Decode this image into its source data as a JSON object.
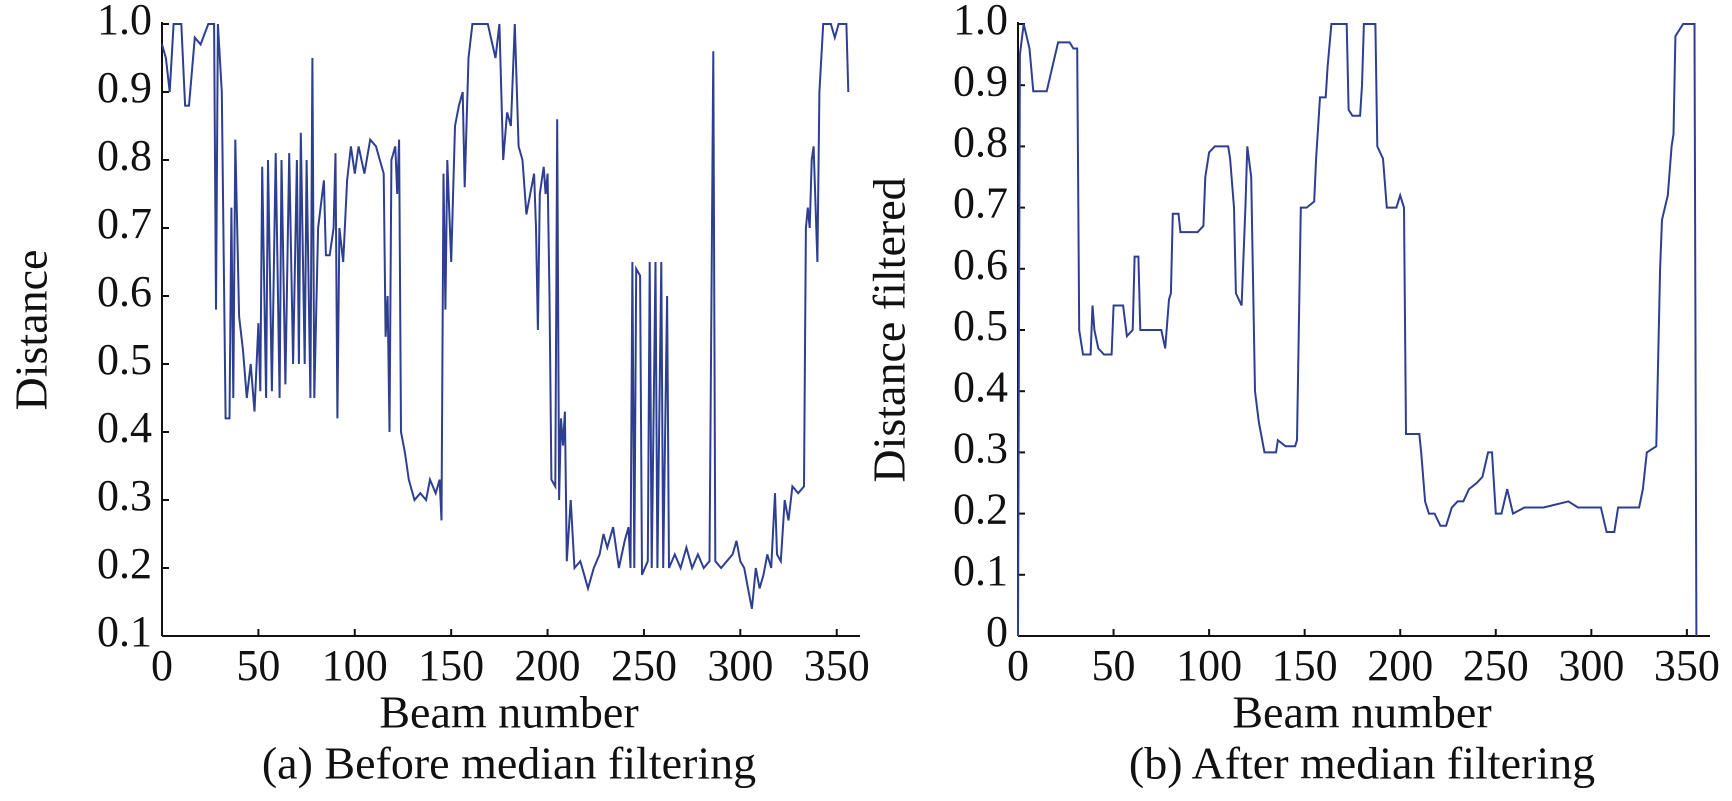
{
  "chart_data": [
    {
      "type": "line",
      "caption": "(a) Before median filtering",
      "xlabel": "Beam number",
      "ylabel": "Distance",
      "color": "#2e3f92",
      "x": [
        0,
        2,
        4,
        6,
        10,
        12,
        14,
        17,
        20,
        24,
        27,
        28,
        29,
        31,
        33,
        35,
        36,
        37,
        38,
        40,
        42,
        44,
        46,
        48,
        50,
        51,
        52,
        54,
        55,
        57,
        59,
        61,
        62,
        64,
        66,
        68,
        70,
        71,
        72,
        74,
        75,
        77,
        78,
        79,
        81,
        84,
        85,
        87,
        89,
        90,
        91,
        92,
        94,
        96,
        98,
        100,
        102,
        105,
        108,
        111,
        113,
        115,
        116,
        117,
        118,
        119,
        121,
        122,
        123,
        124,
        126,
        128,
        131,
        134,
        137,
        139,
        142,
        144,
        145,
        146,
        147,
        148,
        150,
        152,
        154,
        156,
        157,
        159,
        161,
        169,
        173,
        175,
        177,
        179,
        181,
        183,
        185,
        187,
        189,
        191,
        193,
        194,
        195,
        196,
        198,
        199,
        200,
        201,
        202,
        204,
        205,
        206,
        207,
        208,
        209,
        210,
        212,
        214,
        217,
        219,
        221,
        224,
        227,
        229,
        231,
        234,
        237,
        240,
        242,
        243,
        244,
        245,
        246,
        248,
        249,
        252,
        253,
        254,
        256,
        257,
        259,
        260,
        262,
        263,
        266,
        269,
        272,
        275,
        278,
        281,
        284,
        286,
        287,
        290,
        293,
        296,
        298,
        300,
        302,
        304,
        306,
        308,
        310,
        312,
        314,
        316,
        318,
        319,
        321,
        323,
        325,
        327,
        330,
        333,
        334,
        335,
        336,
        337,
        338,
        340,
        341,
        343,
        347,
        349,
        351,
        355,
        356
      ],
      "values": [
        0.97,
        0.95,
        0.9,
        1,
        1,
        0.88,
        0.88,
        0.98,
        0.97,
        1,
        1,
        0.58,
        1,
        0.9,
        0.42,
        0.42,
        0.73,
        0.45,
        0.83,
        0.57,
        0.52,
        0.45,
        0.5,
        0.43,
        0.56,
        0.46,
        0.79,
        0.45,
        0.8,
        0.46,
        0.81,
        0.45,
        0.8,
        0.47,
        0.81,
        0.5,
        0.8,
        0.5,
        0.84,
        0.5,
        0.8,
        0.45,
        0.95,
        0.45,
        0.7,
        0.77,
        0.66,
        0.66,
        0.7,
        0.81,
        0.42,
        0.7,
        0.65,
        0.77,
        0.82,
        0.78,
        0.82,
        0.78,
        0.83,
        0.82,
        0.8,
        0.78,
        0.54,
        0.6,
        0.4,
        0.8,
        0.82,
        0.75,
        0.83,
        0.4,
        0.37,
        0.33,
        0.3,
        0.31,
        0.3,
        0.33,
        0.31,
        0.33,
        0.27,
        0.78,
        0.58,
        0.8,
        0.65,
        0.85,
        0.88,
        0.9,
        0.76,
        0.95,
        1,
        1,
        0.95,
        1,
        0.8,
        0.87,
        0.85,
        1,
        0.82,
        0.8,
        0.72,
        0.75,
        0.78,
        0.7,
        0.55,
        0.75,
        0.79,
        0.75,
        0.78,
        0.6,
        0.33,
        0.32,
        0.86,
        0.3,
        0.42,
        0.38,
        0.43,
        0.21,
        0.3,
        0.2,
        0.21,
        0.19,
        0.17,
        0.2,
        0.22,
        0.25,
        0.23,
        0.26,
        0.2,
        0.24,
        0.26,
        0.2,
        0.65,
        0.2,
        0.64,
        0.63,
        0.19,
        0.21,
        0.65,
        0.2,
        0.65,
        0.2,
        0.65,
        0.2,
        0.6,
        0.2,
        0.22,
        0.2,
        0.23,
        0.2,
        0.22,
        0.2,
        0.21,
        0.96,
        0.21,
        0.2,
        0.21,
        0.22,
        0.24,
        0.21,
        0.2,
        0.17,
        0.14,
        0.2,
        0.17,
        0.19,
        0.22,
        0.2,
        0.31,
        0.22,
        0.21,
        0.3,
        0.27,
        0.32,
        0.31,
        0.32,
        0.7,
        0.73,
        0.7,
        0.8,
        0.82,
        0.65,
        0.9,
        1,
        1,
        0.98,
        1,
        1,
        0.9
      ],
      "xlim": [
        0,
        360
      ],
      "xticks": [
        0,
        50,
        100,
        150,
        200,
        250,
        300,
        350
      ],
      "ylim": [
        0.1,
        1
      ],
      "yticks": [
        0.1,
        0.2,
        0.3,
        0.4,
        0.5,
        0.6,
        0.7,
        0.8,
        0.9,
        {
          "value": 1,
          "label": "1.0"
        }
      ]
    },
    {
      "type": "line",
      "caption": "(b) After median filtering",
      "xlabel": "Beam number",
      "ylabel": "Distance filtered",
      "color": "#2e3f92",
      "x": [
        0,
        1,
        3,
        6,
        8,
        15,
        18,
        21,
        27,
        29,
        31,
        32,
        34,
        38,
        39,
        40,
        42,
        45,
        49,
        50,
        55,
        57,
        60,
        61,
        63,
        64,
        70,
        75,
        77,
        79,
        80,
        81,
        84,
        85,
        94,
        97,
        98,
        100,
        103,
        110,
        111,
        113,
        114,
        117,
        119,
        120,
        122,
        124,
        126,
        129,
        135,
        136,
        140,
        145,
        146,
        148,
        151,
        155,
        156,
        158,
        161,
        162,
        164,
        172,
        173,
        175,
        179,
        180,
        181,
        187,
        188,
        191,
        193,
        198,
        200,
        202,
        203,
        210,
        211,
        213,
        215,
        218,
        221,
        224,
        227,
        230,
        233,
        236,
        240,
        243,
        246,
        248,
        250,
        253,
        256,
        259,
        265,
        275,
        288,
        293,
        305,
        308,
        312,
        314,
        325,
        327,
        329,
        334,
        336,
        337,
        340,
        342,
        343,
        344,
        348,
        354,
        355
      ],
      "values": [
        0,
        0.95,
        1,
        0.96,
        0.89,
        0.89,
        0.93,
        0.97,
        0.97,
        0.96,
        0.96,
        0.5,
        0.46,
        0.46,
        0.54,
        0.5,
        0.47,
        0.46,
        0.46,
        0.54,
        0.54,
        0.49,
        0.5,
        0.62,
        0.62,
        0.5,
        0.5,
        0.5,
        0.47,
        0.55,
        0.56,
        0.69,
        0.69,
        0.66,
        0.66,
        0.67,
        0.75,
        0.79,
        0.8,
        0.8,
        0.78,
        0.7,
        0.56,
        0.54,
        0.7,
        0.8,
        0.75,
        0.4,
        0.35,
        0.3,
        0.3,
        0.32,
        0.31,
        0.31,
        0.32,
        0.7,
        0.7,
        0.71,
        0.78,
        0.88,
        0.88,
        0.93,
        1,
        1,
        0.86,
        0.85,
        0.85,
        0.9,
        1,
        1,
        0.8,
        0.78,
        0.7,
        0.7,
        0.72,
        0.7,
        0.33,
        0.33,
        0.3,
        0.22,
        0.2,
        0.2,
        0.18,
        0.18,
        0.21,
        0.22,
        0.22,
        0.24,
        0.25,
        0.26,
        0.3,
        0.3,
        0.2,
        0.2,
        0.24,
        0.2,
        0.21,
        0.21,
        0.22,
        0.21,
        0.21,
        0.17,
        0.17,
        0.21,
        0.21,
        0.24,
        0.3,
        0.31,
        0.6,
        0.68,
        0.72,
        0.8,
        0.82,
        0.98,
        1,
        1,
        0
      ],
      "xlim": [
        0,
        360
      ],
      "xticks": [
        0,
        50,
        100,
        150,
        200,
        250,
        300,
        350
      ],
      "ylim": [
        0,
        1
      ],
      "yticks": [
        0,
        0.1,
        0.2,
        0.3,
        0.4,
        0.5,
        0.6,
        0.7,
        0.8,
        0.9,
        {
          "value": 1,
          "label": "1.0"
        }
      ]
    }
  ]
}
